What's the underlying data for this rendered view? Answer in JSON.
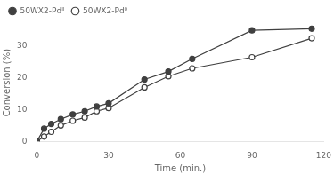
{
  "chart_data": {
    "type": "line",
    "x_label": "Time (min.)",
    "y_label": "Conversion (%)",
    "x": [
      0,
      3,
      6,
      10,
      15,
      20,
      25,
      30,
      45,
      55,
      65,
      90,
      115
    ],
    "series": [
      {
        "name": "50WX2-Pdᴵᴵ",
        "color": "#404040",
        "marker": "filled_circle",
        "values": [
          0,
          4.0,
          5.5,
          7.0,
          8.5,
          9.5,
          11.0,
          12.0,
          19.5,
          22.0,
          26.0,
          35.0,
          35.5
        ]
      },
      {
        "name": "50WX2-Pd⁰",
        "color": "#404040",
        "marker": "open_circle",
        "values": [
          0,
          1.5,
          3.0,
          5.0,
          6.5,
          7.5,
          9.5,
          10.5,
          17.0,
          20.5,
          23.0,
          26.5,
          32.5
        ]
      }
    ],
    "xlim": [
      0,
      120
    ],
    "ylim": [
      0,
      37
    ],
    "xticks": [
      0,
      30,
      60,
      90,
      120
    ],
    "yticks": [
      0,
      10,
      20,
      30
    ],
    "grid": false,
    "legend": "upper left"
  }
}
